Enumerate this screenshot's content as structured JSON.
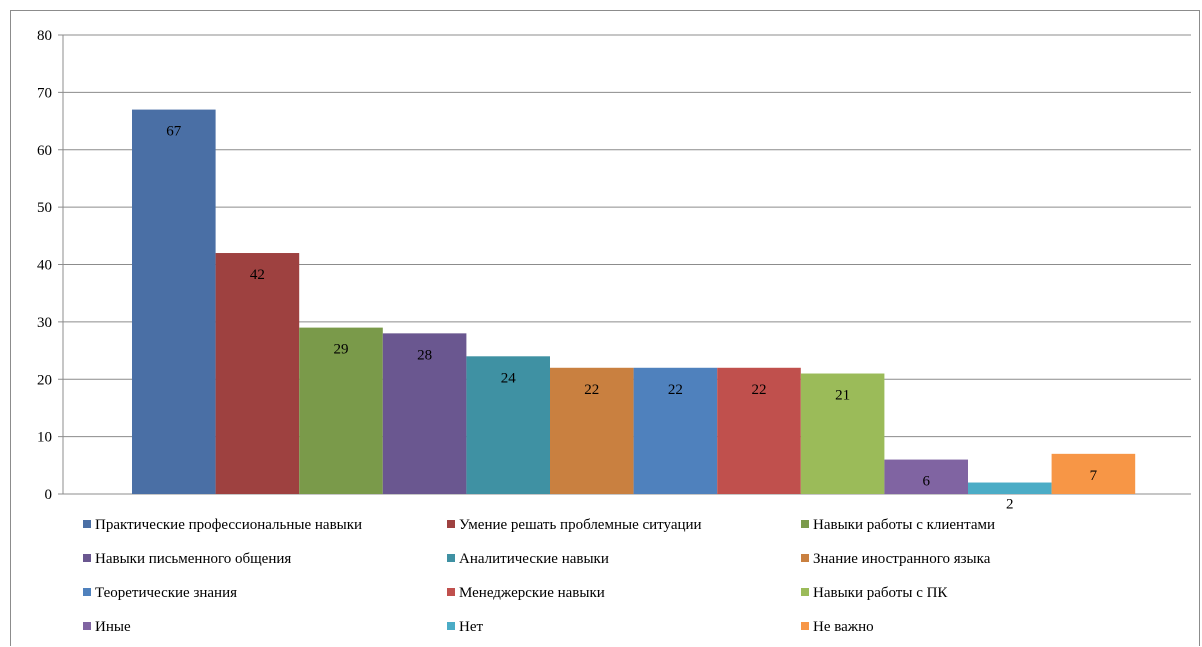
{
  "chart_data": {
    "type": "bar",
    "title": "",
    "xlabel": "",
    "ylabel": "",
    "ylim": [
      0,
      80
    ],
    "yticks": [
      0,
      10,
      20,
      30,
      40,
      50,
      60,
      70,
      80
    ],
    "grid": true,
    "legend_position": "bottom",
    "series": [
      {
        "name": "Практические профессиональные навыки",
        "value": 67,
        "color": "#4a6fa5",
        "label": "67"
      },
      {
        "name": "Умение решать проблемные ситуации",
        "value": 42,
        "color": "#9e4140",
        "label": "42"
      },
      {
        "name": "Навыки работы с клиентами",
        "value": 29,
        "color": "#7a9a4a",
        "label": "29"
      },
      {
        "name": "Навыки письменного общения",
        "value": 28,
        "color": "#6a5790",
        "label": "28"
      },
      {
        "name": "Аналитические навыки",
        "value": 24,
        "color": "#3f91a3",
        "label": "24"
      },
      {
        "name": "Знание иностранного языка",
        "value": 22,
        "color": "#c98040",
        "label": "22"
      },
      {
        "name": "Теоретические знания",
        "value": 22,
        "color": "#4f81bd",
        "label": "22"
      },
      {
        "name": "Менеджерские навыки",
        "value": 22,
        "color": "#c0504d",
        "label": "22"
      },
      {
        "name": "Навыки работы с ПК",
        "value": 21,
        "color": "#9bbb59",
        "label": "21"
      },
      {
        "name": "Иные",
        "value": 6,
        "color": "#8064a2",
        "label": "6"
      },
      {
        "name": "Нет",
        "value": 2,
        "color": "#4bacc6",
        "label": "2"
      },
      {
        "name": "Не важно",
        "value": 7,
        "color": "#f79646",
        "label": "7"
      }
    ]
  }
}
